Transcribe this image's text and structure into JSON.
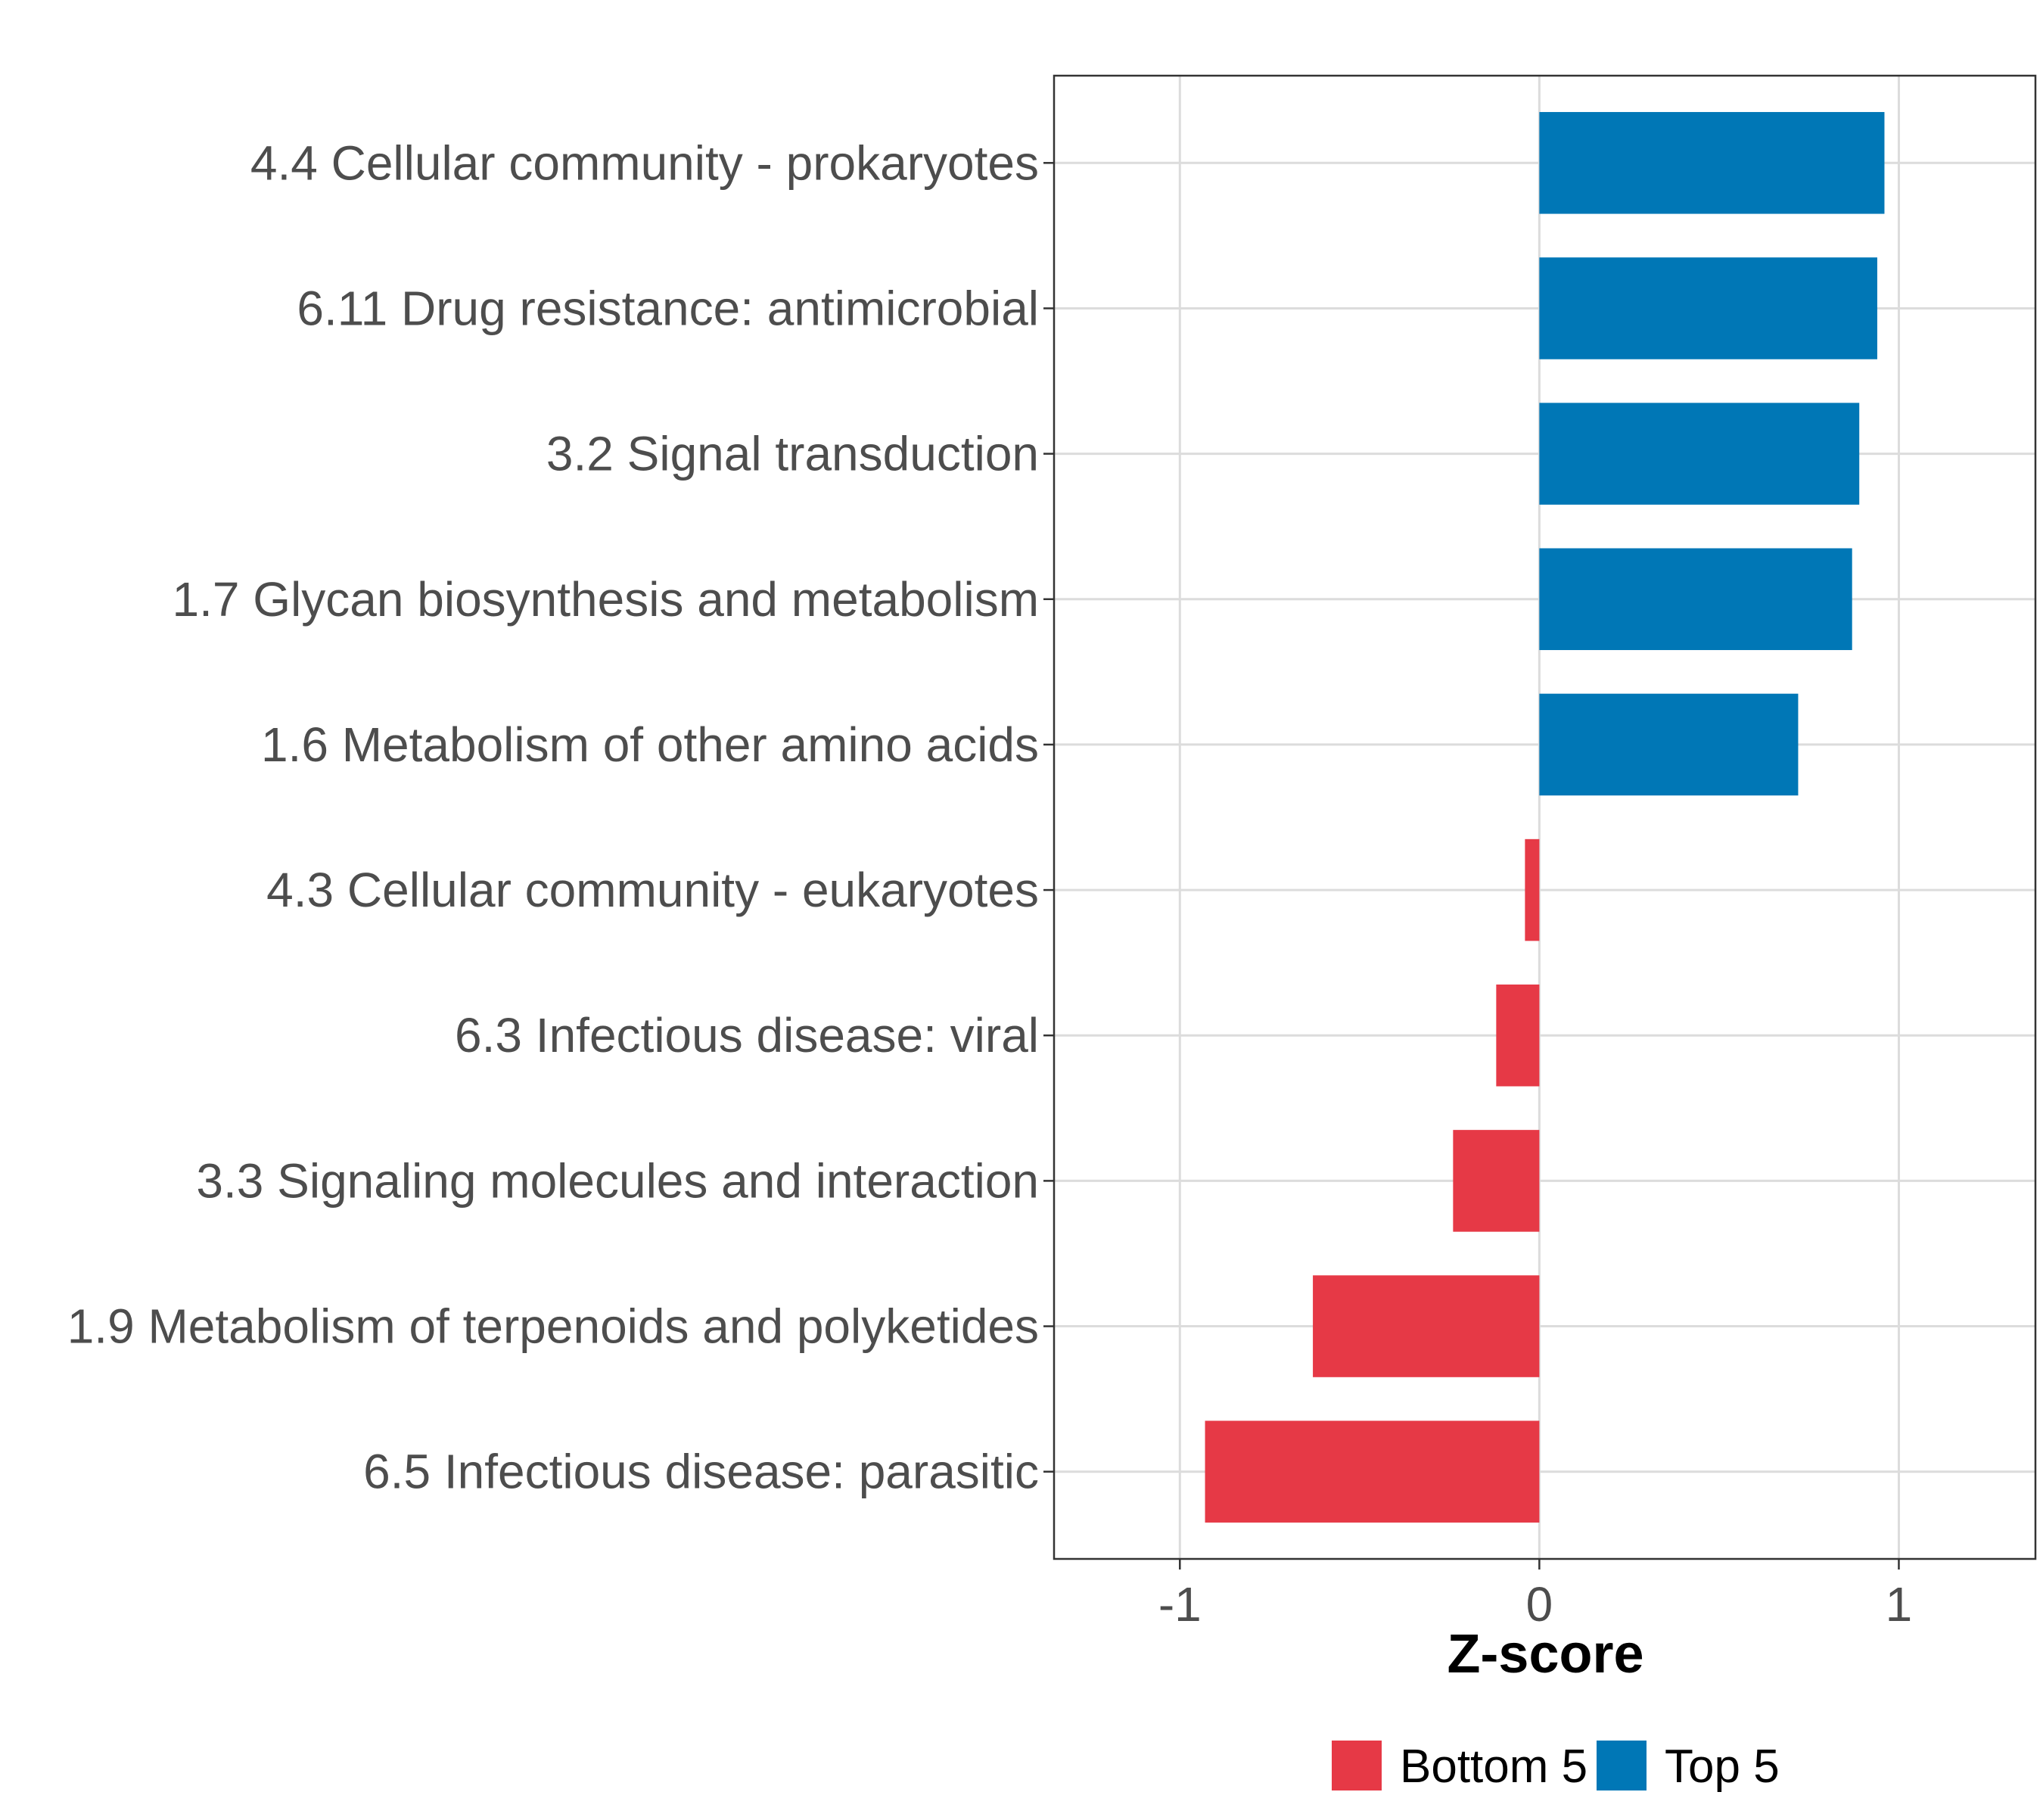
{
  "chart_data": {
    "type": "bar",
    "orientation": "horizontal",
    "title": "",
    "xlabel": "Z-score",
    "ylabel": "",
    "xlim": [
      -1.35,
      1.38
    ],
    "x_ticks": [
      -1,
      0,
      1
    ],
    "x_tick_labels": [
      "-1",
      "0",
      "1"
    ],
    "grid": true,
    "legend_position": "bottom",
    "legend": [
      {
        "name": "Bottom 5",
        "color": "#E63946"
      },
      {
        "name": "Top 5",
        "color": "#0077B6"
      }
    ],
    "categories": [
      "4.4 Cellular community - prokaryotes",
      "6.11 Drug resistance: antimicrobial",
      "3.2 Signal transduction",
      "1.7 Glycan biosynthesis and metabolism",
      "1.6 Metabolism of other amino acids",
      "4.3 Cellular community - eukaryotes",
      "6.3 Infectious disease: viral",
      "3.3 Signaling molecules and interaction",
      "1.9 Metabolism of terpenoids and polyketides",
      "6.5 Infectious disease: parasitic"
    ],
    "values": [
      0.96,
      0.94,
      0.89,
      0.87,
      0.72,
      -0.04,
      -0.12,
      -0.24,
      -0.63,
      -0.93
    ],
    "groups": [
      "Top 5",
      "Top 5",
      "Top 5",
      "Top 5",
      "Top 5",
      "Bottom 5",
      "Bottom 5",
      "Bottom 5",
      "Bottom 5",
      "Bottom 5"
    ]
  }
}
